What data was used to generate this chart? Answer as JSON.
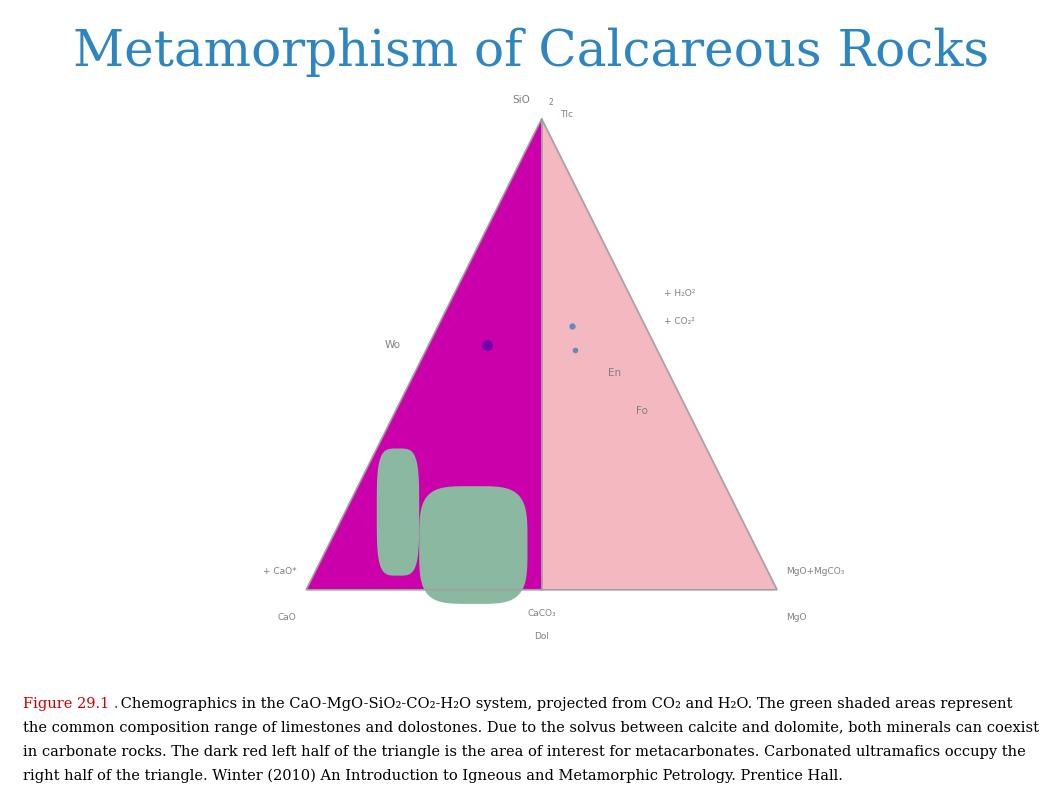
{
  "title": "Metamorphism of Calcareous Rocks",
  "title_color": "#2E86C1",
  "title_fontsize": 36,
  "background_color": "#ffffff",
  "left_half_color": "#CC00AA",
  "right_half_color": "#F4B8C1",
  "green_blob_color": "#8BB8A0",
  "label_color": "#808080",
  "label_fontsize": 7.5,
  "caption_label": "Figure 29.1 .",
  "caption_label_color": "#CC0000",
  "caption_lines": [
    " Chemographics in the CaO-MgO-SiO₂-CO₂-H₂O system, projected from CO₂ and H₂O. The green shaded areas represent",
    "the common composition range of limestones and dolostones. Due to the solvus between calcite and dolomite, both minerals can coexist",
    "in carbonate rocks. The dark red left half of the triangle is the area of interest for metacarbonates. Carbonated ultramafics occupy the",
    "right half of the triangle. Winter (2010) An Introduction to Igneous and Metamorphic Petrology. Prentice Hall."
  ],
  "caption_fontsize": 10.5
}
